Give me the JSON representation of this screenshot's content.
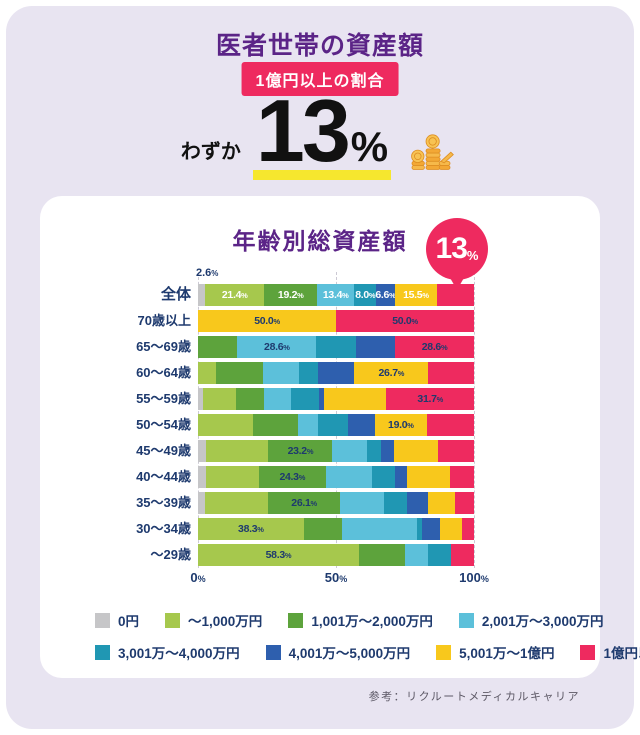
{
  "header": {
    "title": "医者世帯の資産額",
    "badge": "1億円以上の割合",
    "hero_prefix": "わずか",
    "hero_value": "13",
    "hero_unit": "%"
  },
  "chart": {
    "title": "年齢別総資産額",
    "bubble_value": "13",
    "bubble_unit": "%"
  },
  "chart_data": {
    "type": "bar",
    "stacked": true,
    "orientation": "horizontal",
    "title": "年齢別総資産額",
    "xlim": [
      0,
      100
    ],
    "x_ticks": [
      {
        "label": "0%",
        "pos": 0
      },
      {
        "label": "50%",
        "pos": 50
      },
      {
        "label": "100%",
        "pos": 100
      }
    ],
    "segments": [
      {
        "label": "0円",
        "color": "#c6c6c8"
      },
      {
        "label": "〜1,000万円",
        "color": "#a6c84d"
      },
      {
        "label": "1,001万〜2,000万円",
        "color": "#5da33c"
      },
      {
        "label": "2,001万〜3,000万円",
        "color": "#5cc0da"
      },
      {
        "label": "3,001万〜4,000万円",
        "color": "#2097b3"
      },
      {
        "label": "4,001万〜5,000万円",
        "color": "#2e5fae"
      },
      {
        "label": "5,001万〜1億円",
        "color": "#f8c81c"
      },
      {
        "label": "1億円以上",
        "color": "#ee2a5f"
      }
    ],
    "rows": [
      {
        "category": "全体",
        "emphasis": true,
        "label_style": "light",
        "values": [
          2.6,
          21.4,
          19.2,
          13.4,
          8.0,
          6.6,
          15.5,
          13.3
        ],
        "above_label": "2.6%",
        "labels": {
          "1": "21.4%",
          "2": "19.2%",
          "3": "13.4%",
          "4": "8.0%",
          "5": "6.6%",
          "6": "15.5%"
        }
      },
      {
        "category": "70歳以上",
        "values": [
          0,
          0,
          0,
          0,
          0,
          0,
          50.0,
          50.0
        ],
        "labels": {
          "6": "50.0%",
          "7": "50.0%"
        }
      },
      {
        "category": "65〜69歳",
        "values": [
          0,
          0,
          14.3,
          28.6,
          14.3,
          14.3,
          0,
          28.6
        ],
        "labels": {
          "3": "28.6%",
          "7": "28.6%"
        }
      },
      {
        "category": "60〜64歳",
        "values": [
          0,
          6.7,
          16.7,
          13.3,
          6.7,
          13.3,
          26.7,
          16.6
        ],
        "labels": {
          "6": "26.7%"
        }
      },
      {
        "category": "55〜59歳",
        "values": [
          1.7,
          12.1,
          10.0,
          10.0,
          10.2,
          1.8,
          22.5,
          31.7
        ],
        "labels": {
          "7": "31.7%"
        }
      },
      {
        "category": "50〜54歳",
        "values": [
          0,
          20.0,
          16.3,
          7.3,
          10.7,
          9.7,
          19.0,
          17.0
        ],
        "labels": {
          "6": "19.0%"
        }
      },
      {
        "category": "45〜49歳",
        "values": [
          3.0,
          22.5,
          23.2,
          12.7,
          4.8,
          4.7,
          16.1,
          13.0
        ],
        "labels": {
          "2": "23.2%"
        }
      },
      {
        "category": "40〜44歳",
        "values": [
          2.9,
          19.1,
          24.3,
          16.8,
          8.1,
          4.7,
          15.3,
          8.8
        ],
        "labels": {
          "2": "24.3%"
        }
      },
      {
        "category": "35〜39歳",
        "values": [
          2.6,
          22.8,
          26.1,
          15.8,
          8.5,
          7.6,
          9.9,
          6.7
        ],
        "labels": {
          "2": "26.1%"
        }
      },
      {
        "category": "30〜34歳",
        "values": [
          0,
          38.3,
          13.8,
          27.2,
          1.8,
          6.7,
          8.0,
          4.2
        ],
        "labels": {
          "1": "38.3%"
        }
      },
      {
        "category": "〜29歳",
        "values": [
          0,
          58.3,
          16.7,
          8.3,
          8.3,
          0,
          0,
          8.4
        ],
        "labels": {
          "1": "58.3%"
        }
      }
    ]
  },
  "footer": {
    "source": "参考：リクルートメディカルキャリア"
  },
  "colors": {
    "panel_bg": "#e8e4f1",
    "card_bg": "#ffffff",
    "title_purple": "#5b2487",
    "accent_pink": "#ee2a5f",
    "highlight_yellow": "#f6e72e",
    "navy_text": "#1e3a6e"
  }
}
